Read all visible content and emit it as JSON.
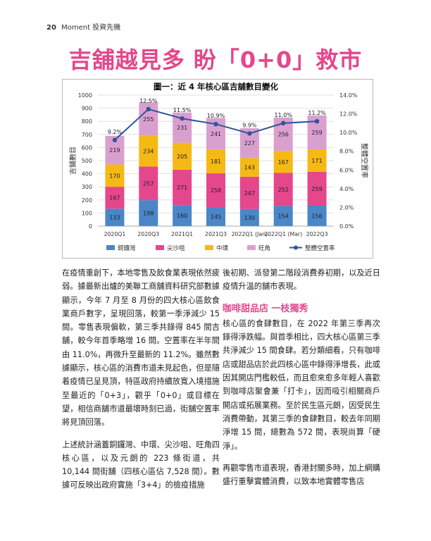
{
  "header": {
    "page_number": "20",
    "magazine": "Moment 投資先機"
  },
  "article_title": "吉舖越見多 盼「0+0」救市",
  "chart_data": {
    "type": "bar",
    "title": "圖一：近 4 年核心區吉舖數目變化",
    "categories": [
      "2020Q1",
      "2020Q3",
      "2021Q1",
      "2021Q3",
      "2022Q1 (Jan)",
      "2022Q1 (Mar)",
      "2022Q3"
    ],
    "stacked": true,
    "series": [
      {
        "name": "銅鑼灣",
        "color": "#4a86c8",
        "values": [
          133,
          198,
          160,
          145,
          130,
          154,
          156
        ]
      },
      {
        "name": "尖沙咀",
        "color": "#e4478c",
        "values": [
          167,
          257,
          271,
          258,
          247,
          252,
          259
        ]
      },
      {
        "name": "中環",
        "color": "#f5b915",
        "values": [
          170,
          234,
          205,
          181,
          143,
          167,
          171
        ]
      },
      {
        "name": "旺角",
        "color": "#d9a0cf",
        "values": [
          219,
          255,
          231,
          241,
          227,
          256,
          259
        ]
      }
    ],
    "line_series": {
      "name": "整體空置率",
      "color": "#2f5597",
      "axis": "right",
      "values": [
        9.2,
        12.5,
        11.5,
        10.9,
        9.9,
        11.0,
        11.2
      ],
      "labels": [
        "9.2%",
        "12.5%",
        "11.5%",
        "10.9%",
        "9.9%",
        "11.0%",
        "11.2%"
      ]
    },
    "ylabel": "吉舖數目",
    "y2label": "整體空置率",
    "ylim": [
      0,
      1000
    ],
    "y_ticks": [
      "0",
      "100",
      "200",
      "300",
      "400",
      "500",
      "600",
      "700",
      "800",
      "900",
      "1000"
    ],
    "y2lim": [
      0,
      14
    ],
    "y2_ticks": [
      "0.0%",
      "2.0%",
      "4.0%",
      "6.0%",
      "8.0%",
      "10.0%",
      "12.0%",
      "14.0%"
    ],
    "legend_position": "bottom",
    "grid": true
  },
  "body": {
    "left_p1": "在疫情重創下，本地零售及飲食業表現依然疲弱。據最新出爐的美聯工商舖資料研究部數據顯示，今年 7 月至 8 月份的四大核心區飲食業商戶數字，呈現回落，較第一季淨減少 15 間。零售表現偏軟，第三季共錄得 845 間吉舖，較今年首季略增 16 間。空置率在半年間由 11.0%，再微升至最新的 11.2%。雖然數據顯示，核心區的消費市道未見起色，但是隨着疫情已呈見頂，特區政府持續放寬入境措施至最近的「0+3」，觀乎「0+0」或目標在望，相信商舖市道最壞時刻已過，街舖空置率將見頂回落。",
    "left_p2": "上述統計涵蓋銅鑼灣、中環、尖沙咀、旺角四核心區，以及元朗的 223 條街道，共 10,144 間街舖（四核心區佔 7,528 間）。數據可反映出政府實施「3+4」的檢疫措施",
    "right_p1": "後初期、派發第二階段消費券初期，以及近日疫情升溫的舖市表現。",
    "subheading": "咖啡甜品店 一枝獨秀",
    "right_p2": "核心區的食肆數目，在 2022 年第三季再次錄得淨跌幅。與首季相比，四大核心區第三季共淨減少 15 間食肆。若分類細看，只有咖啡店或甜品店於此四核心區中錄得淨增長，此或因其開店門檻較低，而且愈來愈多年輕人喜歡到咖啡店聚會兼「打卡」，因而吸引相關商戶開店或拓展業務。至於民生區元朗，因受民生消費帶動，其第三季的食肆數目，較去年同期淨增 15 間，總數為 572 間，表現尚算「硬淨」。",
    "right_p3": "再觀零售市道表現，香港封關多時，加上網購盛行重擊實體消費，以致本地實體零售店"
  }
}
